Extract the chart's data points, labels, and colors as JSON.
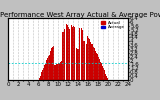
{
  "title": "Solar PV/Inverter Performance West Array Actual & Average Power Output",
  "bg_color": "#c0c0c0",
  "plot_bg": "#ffffff",
  "bar_color": "#cc0000",
  "avg_line_color": "#00cccc",
  "legend_actual_color": "#cc0000",
  "legend_avg_color": "#0000cc",
  "legend_actual_label": "Actual",
  "legend_avg_label": "Average",
  "ylim": [
    0,
    6.4
  ],
  "avg_value": 1.8,
  "num_bars": 144,
  "title_fontsize": 5,
  "tick_fontsize": 4
}
